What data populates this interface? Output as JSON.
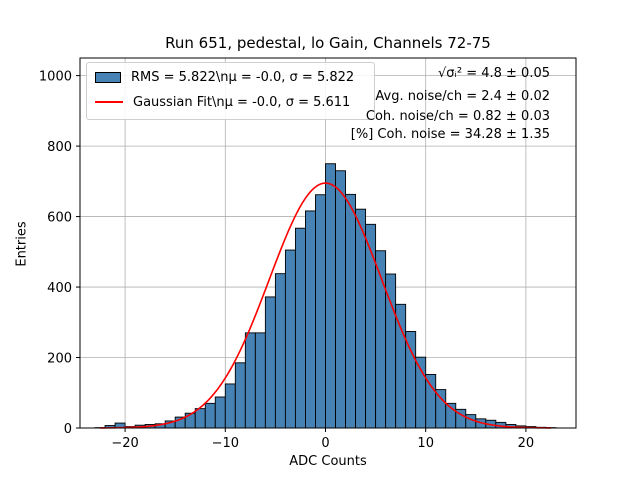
{
  "chart_data": {
    "type": "bar",
    "title": "Run 651, pedestal, lo Gain, Channels 72-75",
    "xlabel": "ADC Counts",
    "ylabel": "Entries",
    "xlim": [
      -24.5,
      25
    ],
    "ylim": [
      0,
      1050
    ],
    "xticks": [
      -20,
      -10,
      0,
      10,
      20
    ],
    "yticks": [
      0,
      200,
      400,
      600,
      800,
      1000
    ],
    "grid": true,
    "legend_position": "upper-left",
    "bin_width": 1,
    "bins": [
      {
        "x": -22.5,
        "y": 1
      },
      {
        "x": -21.5,
        "y": 7
      },
      {
        "x": -20.5,
        "y": 14
      },
      {
        "x": -19.5,
        "y": 4
      },
      {
        "x": -18.5,
        "y": 8
      },
      {
        "x": -17.5,
        "y": 10
      },
      {
        "x": -16.5,
        "y": 12
      },
      {
        "x": -15.5,
        "y": 20
      },
      {
        "x": -14.5,
        "y": 31
      },
      {
        "x": -13.5,
        "y": 42
      },
      {
        "x": -12.5,
        "y": 55
      },
      {
        "x": -11.5,
        "y": 70
      },
      {
        "x": -10.5,
        "y": 88
      },
      {
        "x": -9.5,
        "y": 125
      },
      {
        "x": -8.5,
        "y": 185
      },
      {
        "x": -7.5,
        "y": 270
      },
      {
        "x": -6.5,
        "y": 270
      },
      {
        "x": -5.5,
        "y": 372
      },
      {
        "x": -4.5,
        "y": 438
      },
      {
        "x": -3.5,
        "y": 505
      },
      {
        "x": -2.5,
        "y": 567
      },
      {
        "x": -1.5,
        "y": 616
      },
      {
        "x": -0.5,
        "y": 662
      },
      {
        "x": 0.5,
        "y": 750
      },
      {
        "x": 1.5,
        "y": 730
      },
      {
        "x": 2.5,
        "y": 663
      },
      {
        "x": 3.5,
        "y": 621
      },
      {
        "x": 4.5,
        "y": 578
      },
      {
        "x": 5.5,
        "y": 503
      },
      {
        "x": 6.5,
        "y": 437
      },
      {
        "x": 7.5,
        "y": 351
      },
      {
        "x": 8.5,
        "y": 274
      },
      {
        "x": 9.5,
        "y": 201
      },
      {
        "x": 10.5,
        "y": 152
      },
      {
        "x": 11.5,
        "y": 109
      },
      {
        "x": 12.5,
        "y": 70
      },
      {
        "x": 13.5,
        "y": 53
      },
      {
        "x": 14.5,
        "y": 38
      },
      {
        "x": 15.5,
        "y": 26
      },
      {
        "x": 16.5,
        "y": 22
      },
      {
        "x": 17.5,
        "y": 16
      },
      {
        "x": 18.5,
        "y": 10
      },
      {
        "x": 19.5,
        "y": 6
      },
      {
        "x": 20.5,
        "y": 4
      },
      {
        "x": 21.5,
        "y": 2
      },
      {
        "x": 22.5,
        "y": 1
      }
    ],
    "fit": {
      "amplitude": 695,
      "mu": -0.0,
      "sigma": 5.611,
      "x_range": [
        -22.5,
        22.5
      ]
    },
    "legend": [
      {
        "label": "RMS = 5.822\\nμ = -0.0, σ = 5.822",
        "style": "bar",
        "color": "#4682b4"
      },
      {
        "label": "Gaussian Fit\\nμ = -0.0, σ = 5.611",
        "style": "line",
        "color": "#ff0000"
      }
    ],
    "annotations": [
      "√σᵢ² = 4.8 ± 0.05",
      "Avg. noise/ch = 2.4 ± 0.02",
      "Coh. noise/ch = 0.82 ± 0.03",
      "[%] Coh. noise = 34.28 ± 1.35"
    ],
    "colors": {
      "bar_fill": "#4682b4",
      "bar_edge": "#000000",
      "fit_line": "#ff0000",
      "grid": "#b0b0b0"
    }
  }
}
